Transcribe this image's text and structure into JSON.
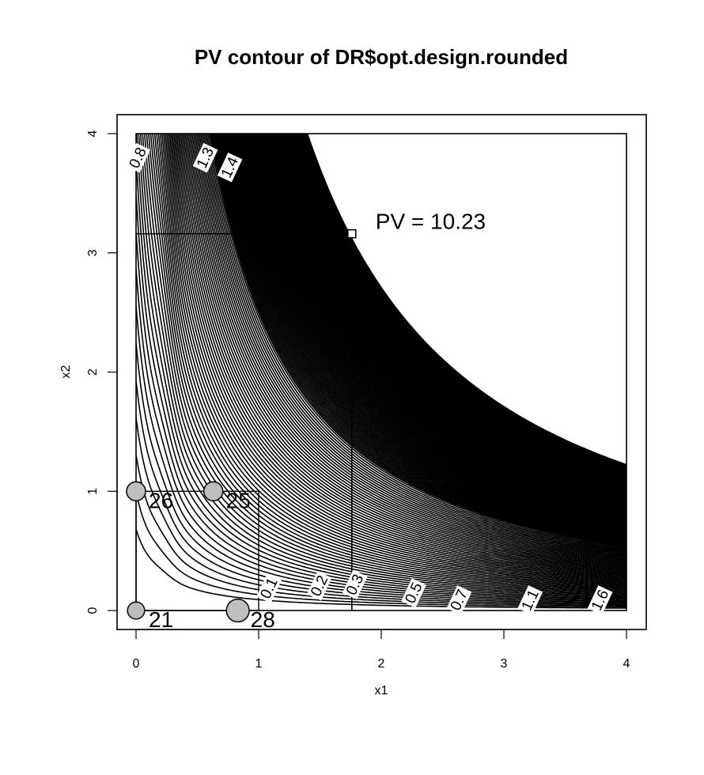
{
  "chart_data": {
    "type": "contour",
    "title": "PV contour of DR$opt.design.rounded",
    "xlabel": "x1",
    "ylabel": "x2",
    "xlim": [
      0,
      4
    ],
    "ylim": [
      0,
      4
    ],
    "xticks": [
      "0",
      "1",
      "2",
      "3",
      "4"
    ],
    "yticks": [
      "0",
      "1",
      "2",
      "3",
      "4"
    ],
    "design_points": [
      {
        "x": 0,
        "y": 1,
        "label": "26",
        "size": 1.0
      },
      {
        "x": 0.63,
        "y": 1,
        "label": "25",
        "size": 1.0
      },
      {
        "x": 0,
        "y": 0,
        "label": "21",
        "size": 0.9
      },
      {
        "x": 0.83,
        "y": 0,
        "label": "28",
        "size": 1.2
      }
    ],
    "design_region": {
      "x": [
        0,
        1
      ],
      "y": [
        0,
        1
      ]
    },
    "max_pv": {
      "x": 1.76,
      "y": 3.16,
      "label": "PV = 10.23"
    },
    "contour_labels": [
      {
        "text": "0.1",
        "x": 1.12,
        "y": 0.17
      },
      {
        "text": "0.2",
        "x": 1.53,
        "y": 0.19
      },
      {
        "text": "0.3",
        "x": 1.82,
        "y": 0.2
      },
      {
        "text": "0.5",
        "x": 2.3,
        "y": 0.13
      },
      {
        "text": "0.7",
        "x": 2.67,
        "y": 0.07
      },
      {
        "text": "1.1",
        "x": 3.25,
        "y": 0.07
      },
      {
        "text": "1.6",
        "x": 3.82,
        "y": 0.07
      },
      {
        "text": "0.8",
        "x": 0.05,
        "y": 3.78
      },
      {
        "text": "1.3",
        "x": 0.6,
        "y": 3.78
      },
      {
        "text": "1.4",
        "x": 0.8,
        "y": 3.7
      }
    ]
  }
}
